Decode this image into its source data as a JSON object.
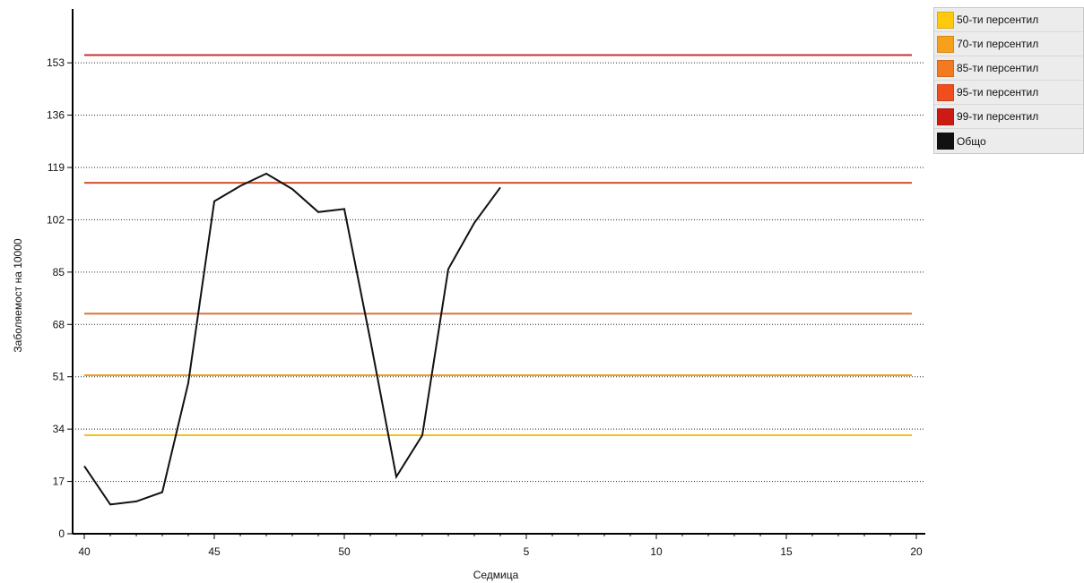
{
  "chart_data": {
    "type": "line",
    "title": "",
    "xlabel": "Седмица",
    "ylabel": "Заболяемост на 10000",
    "ylim": [
      0,
      170
    ],
    "y_ticks": [
      "0",
      "17",
      "34",
      "51",
      "68",
      "85",
      "102",
      "119",
      "136",
      "153"
    ],
    "x_ticks": [
      "40",
      "45",
      "50",
      "5",
      "10",
      "15",
      "20"
    ],
    "grid": "horizontal dotted",
    "legend_position": "top-right",
    "series": [
      {
        "name": "50-ти персентил",
        "color": "#f2c31a",
        "values": [
          32,
          32
        ]
      },
      {
        "name": "70-ти персентил",
        "color": "#f0a020",
        "values": [
          51.5,
          51.5
        ]
      },
      {
        "name": "85-ти персентил",
        "color": "#d9773a",
        "values": [
          71.5,
          71.5
        ]
      },
      {
        "name": "95-ти персентил",
        "color": "#d45030",
        "values": [
          114,
          114
        ]
      },
      {
        "name": "99-ти персентил",
        "color": "#c83030",
        "values": [
          155.5,
          155.5
        ]
      },
      {
        "name": "Общо",
        "color": "#111111",
        "x": [
          40,
          41,
          42,
          43,
          44,
          45,
          46,
          47,
          48,
          49,
          50,
          51,
          52,
          53,
          54,
          55,
          56
        ],
        "values": [
          22,
          9.5,
          10.5,
          13.5,
          49,
          108,
          113,
          117,
          112,
          104.5,
          105.5,
          63,
          18.5,
          32,
          86,
          101,
          112.5
        ]
      }
    ]
  },
  "legend": {
    "items": [
      {
        "label": "50-ти персентил",
        "color": "#ffc90e"
      },
      {
        "label": "70-ти персентил",
        "color": "#f9a01b"
      },
      {
        "label": "85-ти персентил",
        "color": "#f47a1f"
      },
      {
        "label": "95-ти персентил",
        "color": "#f04e1e"
      },
      {
        "label": "99-ти персентил",
        "color": "#cc1a14"
      },
      {
        "label": "Общо",
        "color": "#111111"
      }
    ]
  }
}
